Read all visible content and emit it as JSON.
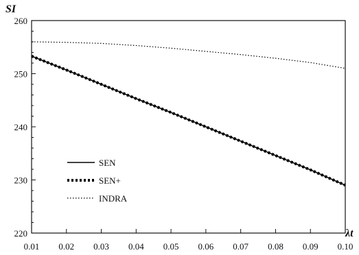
{
  "chart_data": {
    "type": "line",
    "title": "",
    "xlabel": "λt",
    "ylabel": "SI",
    "xlim": [
      0.01,
      0.1
    ],
    "ylim": [
      220,
      260
    ],
    "x_ticks": [
      "0.01",
      "0.02",
      "0.03",
      "0.04",
      "0.05",
      "0.06",
      "0.07",
      "0.08",
      "0.09",
      "0.10"
    ],
    "y_ticks": [
      "220",
      "230",
      "240",
      "250",
      "260"
    ],
    "grid": false,
    "legend_position": "lower-left",
    "series": [
      {
        "name": "SEN",
        "style": "solid",
        "color": "#000000",
        "x": [
          0.01,
          0.02,
          0.03,
          0.04,
          0.05,
          0.06,
          0.07,
          0.08,
          0.09,
          0.1
        ],
        "y": [
          253.3,
          250.7,
          248.0,
          245.3,
          242.7,
          240.0,
          237.3,
          234.6,
          231.9,
          229.0
        ]
      },
      {
        "name": "SEN+",
        "style": "dashed-thick",
        "color": "#000000",
        "x": [
          0.01,
          0.02,
          0.03,
          0.04,
          0.05,
          0.06,
          0.07,
          0.08,
          0.09,
          0.1
        ],
        "y": [
          253.3,
          250.7,
          248.0,
          245.3,
          242.7,
          240.0,
          237.3,
          234.6,
          231.9,
          229.0
        ]
      },
      {
        "name": "INDRA",
        "style": "dotted",
        "color": "#000000",
        "x": [
          0.01,
          0.02,
          0.03,
          0.04,
          0.05,
          0.06,
          0.07,
          0.08,
          0.09,
          0.1
        ],
        "y": [
          256.0,
          255.9,
          255.7,
          255.3,
          254.8,
          254.2,
          253.6,
          252.9,
          252.1,
          251.0
        ]
      }
    ]
  }
}
